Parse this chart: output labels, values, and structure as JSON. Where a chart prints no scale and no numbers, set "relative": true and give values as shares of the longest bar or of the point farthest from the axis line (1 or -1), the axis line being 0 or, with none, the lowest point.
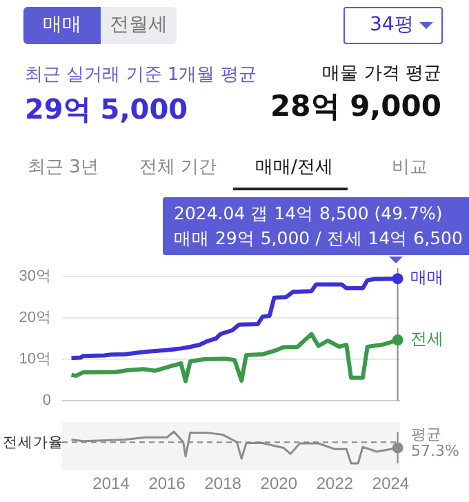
{
  "chart_data": [
    {
      "type": "other",
      "annotations": [
        "매매",
        "전월세",
        "34평",
        "최근 실거래 기준 1개월 평균",
        "29억 5,000",
        "매물 가격 평균",
        "28억 9,000",
        "최근 3년",
        "전체 기간",
        "매매/전세",
        "비교"
      ]
    },
    {
      "type": "line",
      "xlim": [
        "2012-04",
        "2024-05"
      ],
      "xticks": [
        "2014",
        "2016",
        "2018",
        "2020",
        "2022",
        "2024"
      ],
      "ylim": [
        0,
        32
      ],
      "yticks": [
        {
          "value": 0,
          "label": "0"
        },
        {
          "value": 10,
          "label": "10억"
        },
        {
          "value": 20,
          "label": "20억"
        },
        {
          "value": 30,
          "label": "30억"
        }
      ],
      "grid": "y",
      "tick_labels": "y",
      "legend": false,
      "annotations": [
        "2024.04  갭 14억 8,500 (49.7%)",
        "매매 29억 5,000 / 전세 14억 6,500"
      ],
      "ref_lines": [
        {
          "axis": "x",
          "value": "2024-04",
          "color": "#888888"
        }
      ],
      "series": [
        {
          "name": "매매",
          "color": "#3b30d9",
          "x": [
            "2012-08",
            "2012-12",
            "2013-01",
            "2013-10",
            "2014-01",
            "2014-07",
            "2015-01",
            "2015-06",
            "2016-01",
            "2016-07",
            "2016-11",
            "2017-03",
            "2017-06",
            "2017-10",
            "2017-12",
            "2018-05",
            "2018-08",
            "2019-04",
            "2019-06",
            "2019-09",
            "2019-11",
            "2020-04",
            "2020-07",
            "2021-03",
            "2021-05",
            "2022-04",
            "2022-06",
            "2023-01",
            "2023-03",
            "2023-06",
            "2024-04"
          ],
          "values": [
            10.3,
            10.4,
            10.8,
            10.9,
            11.1,
            11.2,
            11.6,
            11.9,
            12.2,
            12.6,
            13.0,
            13.5,
            14.3,
            15.0,
            16.1,
            17.0,
            18.4,
            18.5,
            20.3,
            20.5,
            24.9,
            25.0,
            26.3,
            26.5,
            28.1,
            28.1,
            27.2,
            27.2,
            29.1,
            29.4,
            29.5
          ]
        },
        {
          "name": "전세",
          "color": "#3a9a4a",
          "x": [
            "2012-08",
            "2012-10",
            "2013-01",
            "2014-03",
            "2014-08",
            "2015-03",
            "2015-08",
            "2016-02",
            "2016-07",
            "2016-09",
            "2016-11",
            "2017-05",
            "2018-02",
            "2018-06",
            "2018-09",
            "2018-11",
            "2019-06",
            "2019-11",
            "2020-03",
            "2020-09",
            "2021-03",
            "2021-06",
            "2021-10",
            "2022-03",
            "2022-06",
            "2022-08",
            "2023-01",
            "2023-03",
            "2023-10",
            "2024-04"
          ],
          "values": [
            6.2,
            6.0,
            6.8,
            6.9,
            7.3,
            7.6,
            7.2,
            8.2,
            9.0,
            4.7,
            9.5,
            10.0,
            10.1,
            9.8,
            4.8,
            11.0,
            11.2,
            12.0,
            12.9,
            13.0,
            16.1,
            13.2,
            14.5,
            13.0,
            13.5,
            5.5,
            5.5,
            13.0,
            13.6,
            14.65
          ]
        }
      ]
    },
    {
      "type": "line",
      "relative": true,
      "ylabel": "전세가율",
      "xlim": [
        "2012-04",
        "2024-05"
      ],
      "xticks": [
        "2014",
        "2016",
        "2018",
        "2020",
        "2022",
        "2024"
      ],
      "tick_labels": "x",
      "legend": false,
      "grid": false,
      "ref_lines": [
        {
          "axis": "y",
          "value": 0.67,
          "label": "평균 57.3%",
          "color": "#888888",
          "line_style": "dashed"
        },
        {
          "axis": "x",
          "value": "2024-04",
          "color": "#888888"
        }
      ],
      "series": [
        {
          "color": "#8c8c8c",
          "x": [
            "2012-08",
            "2013-01",
            "2014-07",
            "2015-04",
            "2016-01",
            "2016-04",
            "2016-08",
            "2016-09",
            "2016-11",
            "2017-06",
            "2018-01",
            "2018-07",
            "2018-09",
            "2018-11",
            "2019-06",
            "2020-03",
            "2020-06",
            "2020-10",
            "2021-06",
            "2022-01",
            "2022-06",
            "2022-08",
            "2022-11",
            "2023-01",
            "2023-07",
            "2024-04"
          ],
          "values": [
            0.75,
            0.7,
            0.75,
            0.82,
            0.82,
            1.0,
            0.67,
            0.22,
            0.97,
            0.97,
            0.9,
            0.67,
            0.15,
            0.64,
            0.64,
            0.49,
            0.3,
            0.63,
            0.63,
            0.45,
            0.45,
            0.0,
            0.0,
            0.52,
            0.37,
            0.49
          ]
        }
      ]
    }
  ]
}
